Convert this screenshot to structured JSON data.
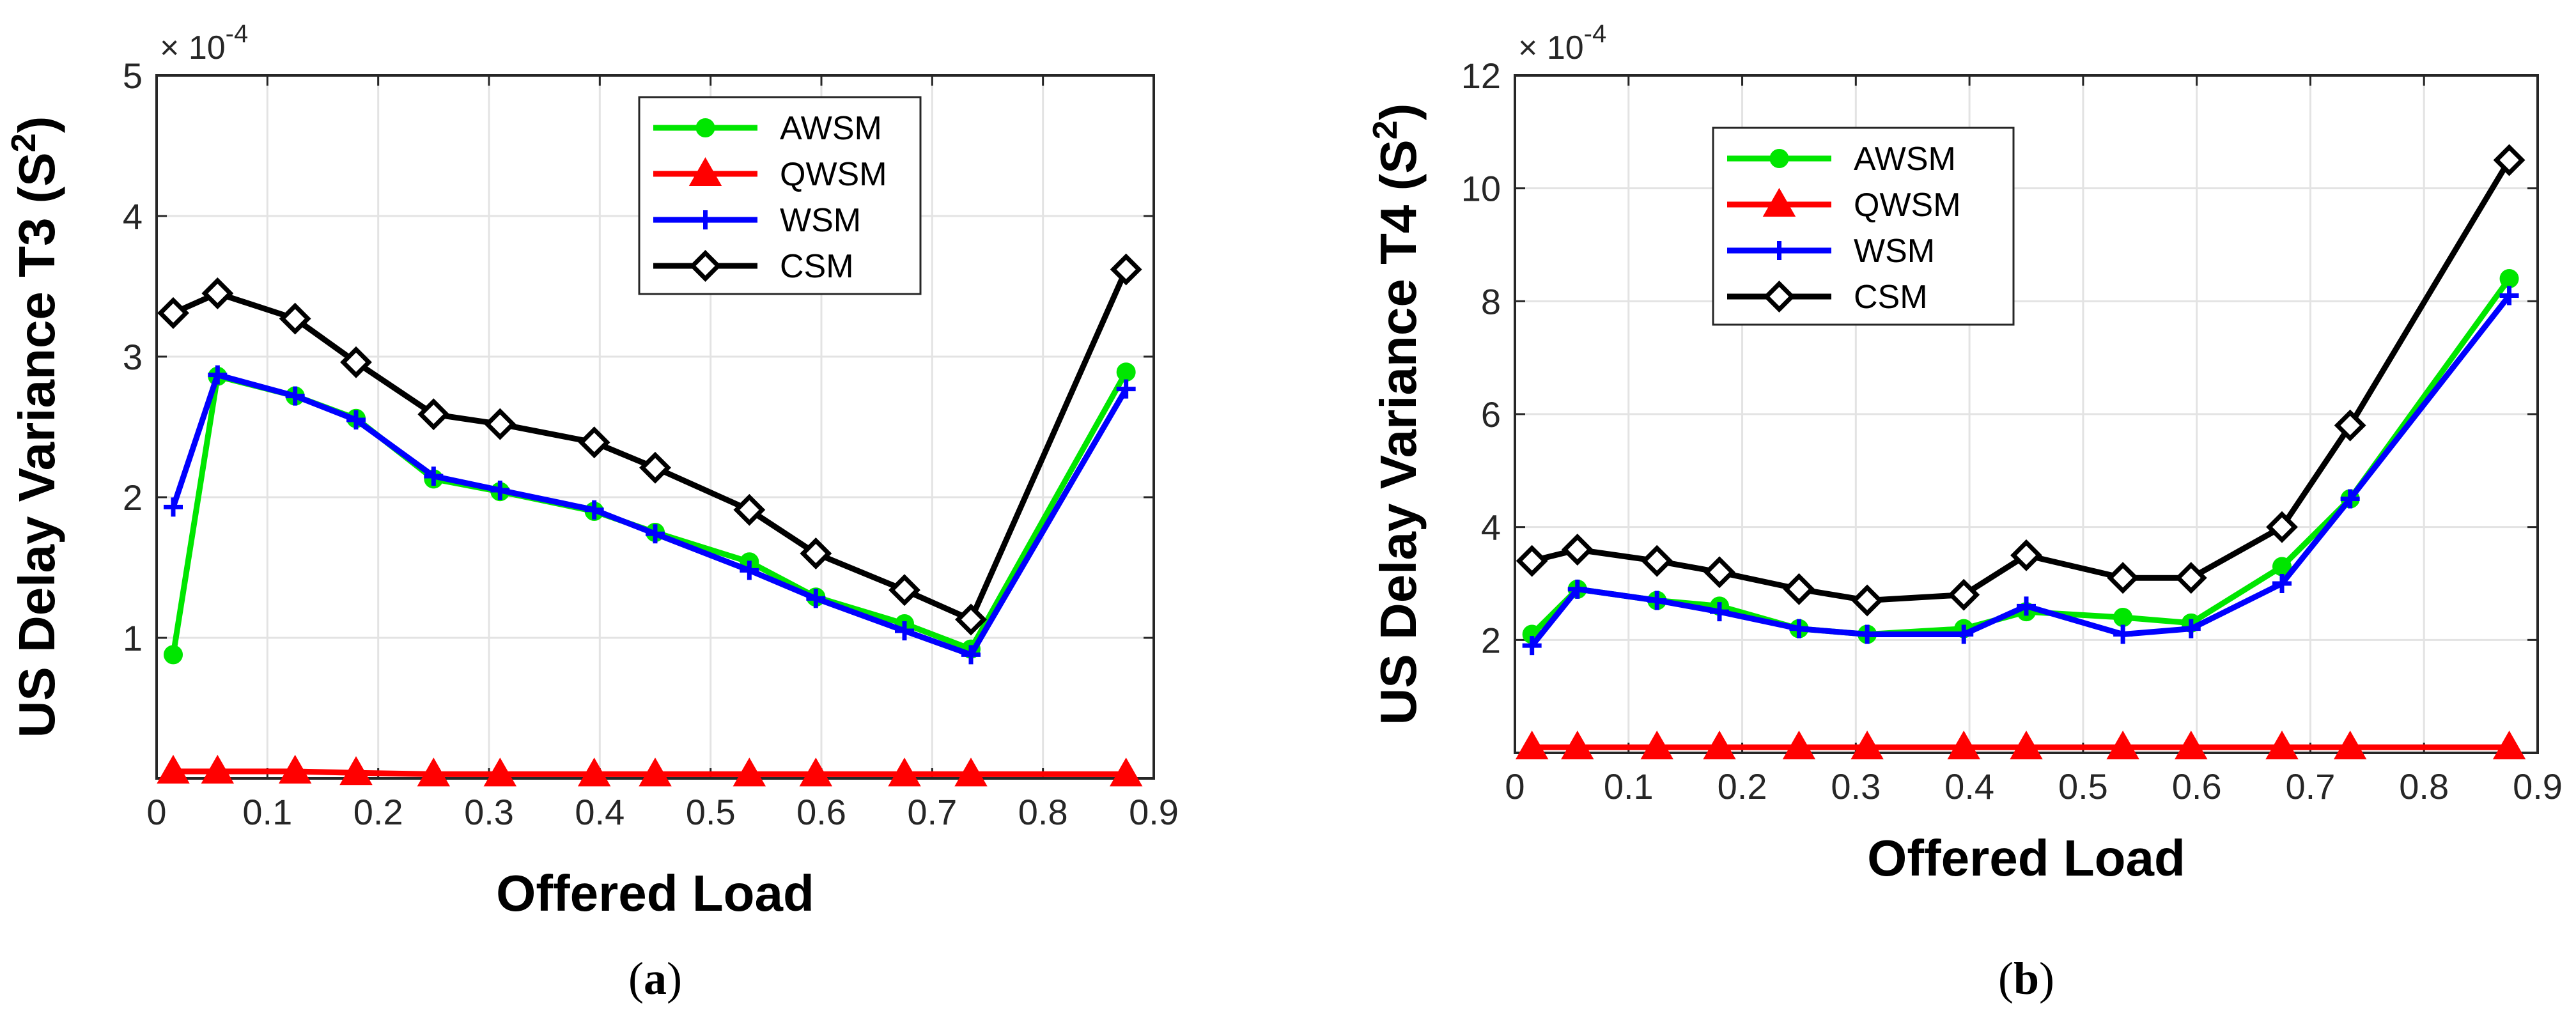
{
  "series_colors": {
    "AWSM": "#00e600",
    "QWSM": "#ff0000",
    "WSM": "#0000ff",
    "CSM": "#000000"
  },
  "chart_data": [
    {
      "type": "line",
      "caption_letter": "a",
      "title": "",
      "xlabel": "Offered Load",
      "ylabel_prefix": "US Delay Variance T3 (S",
      "ylabel_sup": "2",
      "ylabel_suffix": ")",
      "multiplier_text": "× 10",
      "multiplier_exp": "-4",
      "xlim": [
        0,
        0.9
      ],
      "ylim": [
        0,
        5
      ],
      "xticks": [
        0,
        0.1,
        0.2,
        0.3,
        0.4,
        0.5,
        0.6,
        0.7,
        0.8,
        0.9
      ],
      "xtick_labels": [
        "0",
        "0.1",
        "0.2",
        "0.3",
        "0.4",
        "0.5",
        "0.6",
        "0.7",
        "0.8",
        "0.9"
      ],
      "yticks": [
        1,
        2,
        3,
        4,
        5
      ],
      "ytick_labels": [
        "1",
        "2",
        "3",
        "4",
        "5"
      ],
      "grid": true,
      "legend_position": "top-right",
      "x": [
        0.015,
        0.055,
        0.125,
        0.18,
        0.25,
        0.31,
        0.395,
        0.45,
        0.535,
        0.595,
        0.675,
        0.735,
        0.875
      ],
      "series": [
        {
          "name": "AWSM",
          "marker": "circle",
          "values": [
            0.88,
            2.86,
            2.72,
            2.56,
            2.13,
            2.04,
            1.9,
            1.75,
            1.54,
            1.29,
            1.1,
            0.92,
            2.89
          ]
        },
        {
          "name": "QWSM",
          "marker": "triangle",
          "values": [
            0.05,
            0.05,
            0.05,
            0.04,
            0.03,
            0.03,
            0.03,
            0.03,
            0.03,
            0.03,
            0.03,
            0.03,
            0.03
          ]
        },
        {
          "name": "WSM",
          "marker": "plus",
          "values": [
            1.93,
            2.87,
            2.72,
            2.55,
            2.15,
            2.05,
            1.91,
            1.74,
            1.48,
            1.28,
            1.05,
            0.88,
            2.77
          ]
        },
        {
          "name": "CSM",
          "marker": "diamond",
          "values": [
            3.31,
            3.45,
            3.27,
            2.96,
            2.59,
            2.52,
            2.39,
            2.21,
            1.91,
            1.6,
            1.34,
            1.13,
            3.62
          ]
        }
      ]
    },
    {
      "type": "line",
      "caption_letter": "b",
      "title": "",
      "xlabel": "Offered Load",
      "ylabel_prefix": "US Delay Variance T4 (S",
      "ylabel_sup": "2",
      "ylabel_suffix": ")",
      "multiplier_text": "× 10",
      "multiplier_exp": "-4",
      "xlim": [
        0,
        0.9
      ],
      "ylim": [
        0,
        12
      ],
      "xticks": [
        0,
        0.1,
        0.2,
        0.3,
        0.4,
        0.5,
        0.6,
        0.7,
        0.8,
        0.9
      ],
      "xtick_labels": [
        "0",
        "0.1",
        "0.2",
        "0.3",
        "0.4",
        "0.5",
        "0.6",
        "0.7",
        "0.8",
        "0.9"
      ],
      "yticks": [
        2,
        4,
        6,
        8,
        10,
        12
      ],
      "ytick_labels": [
        "2",
        "4",
        "6",
        "8",
        "10",
        "12"
      ],
      "grid": true,
      "legend_position": "top-left",
      "x": [
        0.015,
        0.055,
        0.125,
        0.18,
        0.25,
        0.31,
        0.395,
        0.45,
        0.535,
        0.595,
        0.675,
        0.735,
        0.875
      ],
      "series": [
        {
          "name": "AWSM",
          "marker": "circle",
          "values": [
            2.1,
            2.9,
            2.7,
            2.6,
            2.2,
            2.1,
            2.2,
            2.5,
            2.4,
            2.3,
            3.3,
            4.5,
            8.4
          ]
        },
        {
          "name": "QWSM",
          "marker": "triangle",
          "values": [
            0.1,
            0.1,
            0.1,
            0.1,
            0.1,
            0.1,
            0.1,
            0.1,
            0.1,
            0.1,
            0.1,
            0.1,
            0.1
          ]
        },
        {
          "name": "WSM",
          "marker": "plus",
          "values": [
            1.9,
            2.9,
            2.7,
            2.5,
            2.2,
            2.1,
            2.1,
            2.6,
            2.1,
            2.2,
            3.0,
            4.5,
            8.1
          ]
        },
        {
          "name": "CSM",
          "marker": "diamond",
          "values": [
            3.4,
            3.6,
            3.4,
            3.2,
            2.9,
            2.7,
            2.8,
            3.5,
            3.1,
            3.1,
            4.0,
            5.8,
            10.5
          ]
        }
      ]
    }
  ]
}
